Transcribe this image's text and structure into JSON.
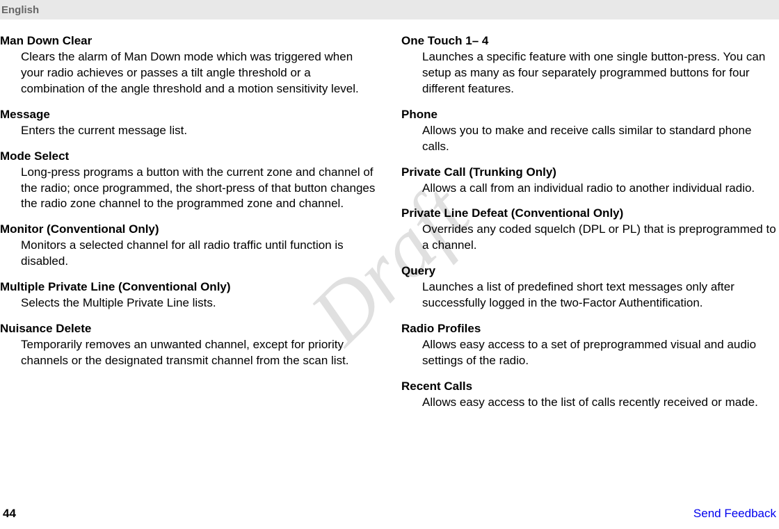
{
  "header": {
    "language": "English"
  },
  "watermark": "Draft",
  "footer": {
    "page_number": "44",
    "feedback_label": "Send Feedback"
  },
  "left_column": [
    {
      "term": "Man Down Clear",
      "definition": "Clears the alarm of Man Down mode which was triggered when your radio achieves or passes a tilt angle threshold or a combination of the angle threshold and a motion sensitivity level."
    },
    {
      "term": "Message",
      "definition": "Enters the current message list."
    },
    {
      "term": "Mode Select",
      "definition": "Long-press programs a button with the current zone and channel of the radio; once programmed, the short-press of that button changes the radio zone channel to the programmed zone and channel."
    },
    {
      "term": "Monitor (Conventional Only)",
      "definition": "Monitors a selected channel for all radio traffic until function is disabled."
    },
    {
      "term": "Multiple Private Line (Conventional Only)",
      "definition": "Selects the Multiple Private Line lists."
    },
    {
      "term": "Nuisance Delete",
      "definition": "Temporarily removes an unwanted channel, except for priority channels or the designated transmit channel from the scan list."
    }
  ],
  "right_column": [
    {
      "term": "One Touch 1– 4",
      "definition": "Launches a specific feature with one single button-press. You can setup as many as four separately programmed buttons for four different features."
    },
    {
      "term": "Phone",
      "definition": "Allows you to make and receive calls similar to standard phone calls."
    },
    {
      "term": "Private Call (Trunking Only)",
      "definition": "Allows a call from an individual radio to another individual radio."
    },
    {
      "term": "Private Line Defeat (Conventional Only)",
      "definition": "Overrides any coded squelch (DPL or PL) that is preprogrammed to a channel."
    },
    {
      "term": "Query",
      "definition": "Launches a list of predefined short text messages only after successfully logged in the two-Factor Authentification."
    },
    {
      "term": "Radio Profiles",
      "definition": "Allows easy access to a set of preprogrammed visual and audio settings of the radio."
    },
    {
      "term": "Recent Calls",
      "definition": "Allows easy access to the list of calls recently received or made."
    }
  ]
}
